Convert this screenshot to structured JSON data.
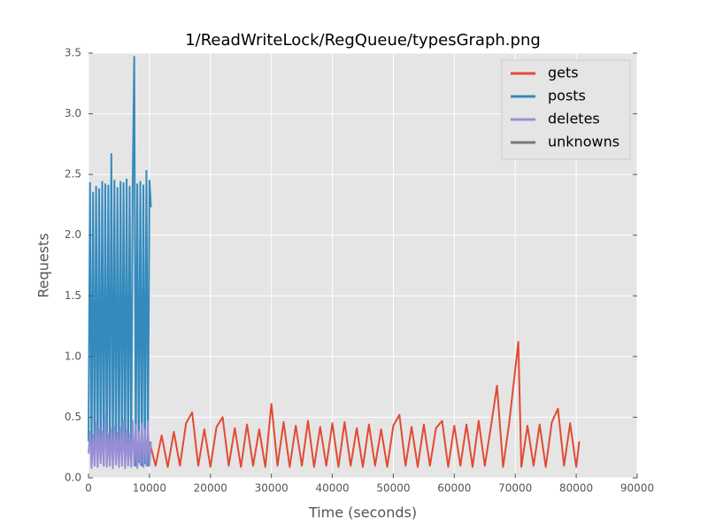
{
  "chart_data": {
    "type": "line",
    "title": "1/ReadWriteLock/RegQueue/typesGraph.png",
    "xlabel": "Time (seconds)",
    "ylabel": "Requests",
    "xlim": [
      0,
      90000
    ],
    "ylim": [
      0,
      3.5
    ],
    "xticks": [
      0,
      10000,
      20000,
      30000,
      40000,
      50000,
      60000,
      70000,
      80000,
      90000
    ],
    "yticks": [
      {
        "value": 0,
        "label": "0.0"
      },
      0.5,
      {
        "value": 1,
        "label": "1.0"
      },
      1.5,
      {
        "value": 2,
        "label": "2.0"
      },
      2.5,
      {
        "value": 3,
        "label": "3.0"
      },
      3.5
    ],
    "grid": true,
    "legend": "upper right",
    "background": "#e5e5e5",
    "series": [
      {
        "name": "gets",
        "color": "#e24a33",
        "x": [
          10000,
          11000,
          12000,
          13000,
          14000,
          15000,
          16000,
          17000,
          18000,
          19000,
          20000,
          21000,
          22000,
          23000,
          24000,
          25000,
          26000,
          27000,
          28000,
          29000,
          30000,
          31000,
          32000,
          33000,
          34000,
          35000,
          36000,
          37000,
          38000,
          39000,
          40000,
          41000,
          42000,
          43000,
          44000,
          45000,
          46000,
          47000,
          48000,
          49000,
          50000,
          51000,
          52000,
          53000,
          54000,
          55000,
          56000,
          57000,
          58000,
          59000,
          60000,
          61000,
          62000,
          63000,
          64000,
          65000,
          66000,
          67000,
          68000,
          69000,
          70500,
          71000,
          72000,
          73000,
          74000,
          75000,
          76000,
          77000,
          78000,
          79000,
          80000,
          80500
        ],
        "values": [
          0.3,
          0.1,
          0.35,
          0.09,
          0.38,
          0.1,
          0.45,
          0.54,
          0.1,
          0.4,
          0.09,
          0.42,
          0.5,
          0.1,
          0.41,
          0.09,
          0.44,
          0.1,
          0.4,
          0.09,
          0.61,
          0.1,
          0.46,
          0.09,
          0.43,
          0.1,
          0.47,
          0.09,
          0.42,
          0.1,
          0.45,
          0.09,
          0.46,
          0.1,
          0.41,
          0.09,
          0.44,
          0.1,
          0.4,
          0.09,
          0.43,
          0.52,
          0.1,
          0.42,
          0.09,
          0.44,
          0.1,
          0.41,
          0.47,
          0.09,
          0.43,
          0.1,
          0.44,
          0.09,
          0.47,
          0.1,
          0.42,
          0.76,
          0.09,
          0.45,
          1.12,
          0.09,
          0.43,
          0.1,
          0.44,
          0.09,
          0.46,
          0.57,
          0.1,
          0.45,
          0.09,
          0.3
        ]
      },
      {
        "name": "posts",
        "color": "#348abd",
        "x": [
          0,
          250,
          500,
          750,
          1000,
          1250,
          1500,
          1750,
          2000,
          2250,
          2500,
          2750,
          3000,
          3250,
          3500,
          3750,
          4000,
          4250,
          4500,
          4750,
          5000,
          5250,
          5500,
          5750,
          6000,
          6250,
          6500,
          6750,
          7000,
          7250,
          7500,
          7750,
          8000,
          8250,
          8500,
          8750,
          9000,
          9250,
          9500,
          9750,
          10000,
          10250
        ],
        "values": [
          0.3,
          2.43,
          0.1,
          2.35,
          0.12,
          2.4,
          0.09,
          2.38,
          0.15,
          2.44,
          0.1,
          2.42,
          0.11,
          2.41,
          0.13,
          2.67,
          0.1,
          2.45,
          0.12,
          2.39,
          0.1,
          2.44,
          0.14,
          2.43,
          0.1,
          2.46,
          0.11,
          2.4,
          0.12,
          2.43,
          3.47,
          0.1,
          2.42,
          0.13,
          2.44,
          0.1,
          2.41,
          0.12,
          2.53,
          0.1,
          2.45,
          2.23
        ]
      },
      {
        "name": "deletes",
        "color": "#988ed5",
        "x": [
          0,
          250,
          500,
          750,
          1000,
          1250,
          1500,
          1750,
          2000,
          2250,
          2500,
          2750,
          3000,
          3250,
          3500,
          3750,
          4000,
          4250,
          4500,
          4750,
          5000,
          5250,
          5500,
          5750,
          6000,
          6250,
          6500,
          6750,
          7000,
          7250,
          7500,
          7750,
          8000,
          8250,
          8500,
          8750,
          9000,
          9250,
          9500,
          9750,
          10000,
          10250
        ],
        "values": [
          0.2,
          0.38,
          0.08,
          0.35,
          0.1,
          0.45,
          0.09,
          0.4,
          0.12,
          0.38,
          0.1,
          0.52,
          0.09,
          0.36,
          0.1,
          0.4,
          0.08,
          0.42,
          0.11,
          0.37,
          0.09,
          0.41,
          0.1,
          0.47,
          0.08,
          0.39,
          0.1,
          0.36,
          0.09,
          0.47,
          0.1,
          0.44,
          0.08,
          0.38,
          0.11,
          0.45,
          0.09,
          0.4,
          0.1,
          0.47,
          0.1,
          0.3
        ]
      },
      {
        "name": "unknowns",
        "color": "#777777",
        "x": [],
        "values": []
      }
    ]
  }
}
